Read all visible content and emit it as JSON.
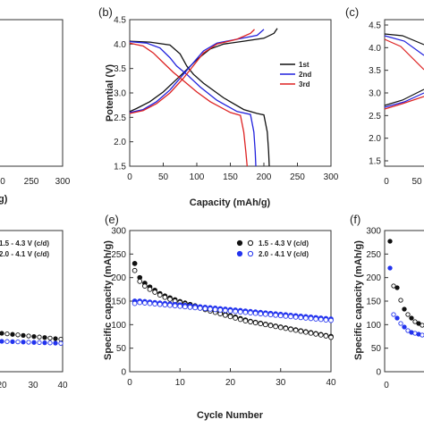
{
  "panels": {
    "a": {
      "tag": "",
      "xticks": [
        "0",
        "250",
        "300"
      ],
      "xlabel_fragment": "g)"
    },
    "b": {
      "tag": "(b)"
    },
    "c": {
      "tag": "(c)",
      "yticks": [
        "4.5",
        "4.0",
        "3.5",
        "3.0",
        "2.5",
        "2.0",
        "1.5"
      ],
      "xticks": [
        "0",
        "50"
      ]
    },
    "d": {
      "tag": "",
      "yticks": [],
      "xticks": [
        "20",
        "30",
        "40"
      ],
      "legend": [
        "1.5 - 4.3 V (c/d)",
        "2.0 - 4.1 V (c/d)"
      ]
    },
    "e": {
      "tag": "(e)"
    },
    "f": {
      "tag": "(f)",
      "ylabel": "Specific capacity (mAh/g)",
      "yticks": [
        "300",
        "250",
        "200",
        "150",
        "100",
        "50",
        "0"
      ],
      "xticks": [
        "0"
      ]
    }
  },
  "colors": {
    "first": "#111111",
    "second": "#2222dd",
    "third": "#dd2222",
    "open_black": "#111111",
    "filled_blue": "#2233ee"
  },
  "chart_data": [
    {
      "panel": "b",
      "type": "line",
      "title": "",
      "xlabel": "Capacity (mAh/g)",
      "ylabel": "Potential (V)",
      "xlim": [
        0,
        300
      ],
      "ylim": [
        1.5,
        4.5
      ],
      "xticks": [
        0,
        50,
        100,
        150,
        200,
        250,
        300
      ],
      "yticks": [
        1.5,
        2.0,
        2.5,
        3.0,
        3.5,
        4.0,
        4.5
      ],
      "legend_position": "right-center",
      "series": [
        {
          "name": "1st",
          "color": "#111111",
          "charge": [
            [
              0,
              2.62
            ],
            [
              10,
              2.68
            ],
            [
              30,
              2.82
            ],
            [
              50,
              3.02
            ],
            [
              70,
              3.28
            ],
            [
              85,
              3.48
            ],
            [
              100,
              3.68
            ],
            [
              120,
              3.9
            ],
            [
              140,
              4.0
            ],
            [
              170,
              4.06
            ],
            [
              200,
              4.12
            ],
            [
              215,
              4.22
            ],
            [
              220,
              4.32
            ]
          ],
          "discharge": [
            [
              0,
              4.06
            ],
            [
              30,
              4.04
            ],
            [
              60,
              3.98
            ],
            [
              75,
              3.8
            ],
            [
              85,
              3.55
            ],
            [
              95,
              3.38
            ],
            [
              110,
              3.2
            ],
            [
              140,
              2.9
            ],
            [
              170,
              2.66
            ],
            [
              190,
              2.58
            ],
            [
              200,
              2.55
            ],
            [
              205,
              2.2
            ],
            [
              207,
              1.8
            ],
            [
              208,
              1.5
            ]
          ]
        },
        {
          "name": "2nd",
          "color": "#2222dd",
          "charge": [
            [
              0,
              2.6
            ],
            [
              20,
              2.66
            ],
            [
              40,
              2.82
            ],
            [
              60,
              3.06
            ],
            [
              80,
              3.38
            ],
            [
              95,
              3.62
            ],
            [
              110,
              3.86
            ],
            [
              130,
              4.02
            ],
            [
              160,
              4.1
            ],
            [
              190,
              4.18
            ],
            [
              200,
              4.3
            ]
          ],
          "discharge": [
            [
              0,
              4.05
            ],
            [
              25,
              4.02
            ],
            [
              45,
              3.92
            ],
            [
              60,
              3.72
            ],
            [
              70,
              3.55
            ],
            [
              85,
              3.38
            ],
            [
              105,
              3.12
            ],
            [
              130,
              2.85
            ],
            [
              160,
              2.62
            ],
            [
              180,
              2.56
            ],
            [
              185,
              2.2
            ],
            [
              187,
              1.8
            ],
            [
              188,
              1.5
            ]
          ]
        },
        {
          "name": "3rd",
          "color": "#dd2222",
          "charge": [
            [
              0,
              2.58
            ],
            [
              20,
              2.64
            ],
            [
              40,
              2.78
            ],
            [
              60,
              3.0
            ],
            [
              80,
              3.3
            ],
            [
              95,
              3.56
            ],
            [
              110,
              3.82
            ],
            [
              130,
              4.0
            ],
            [
              160,
              4.1
            ],
            [
              180,
              4.22
            ],
            [
              186,
              4.3
            ]
          ],
          "discharge": [
            [
              0,
              4.02
            ],
            [
              20,
              3.96
            ],
            [
              35,
              3.82
            ],
            [
              50,
              3.62
            ],
            [
              65,
              3.42
            ],
            [
              80,
              3.25
            ],
            [
              100,
              3.02
            ],
            [
              120,
              2.82
            ],
            [
              150,
              2.6
            ],
            [
              165,
              2.54
            ],
            [
              170,
              2.2
            ],
            [
              173,
              1.8
            ],
            [
              175,
              1.5
            ]
          ]
        }
      ]
    },
    {
      "panel": "e",
      "type": "scatter",
      "title": "",
      "xlabel": "Cycle Number",
      "ylabel": "Specific capacity (mAh/g)",
      "xlim": [
        0,
        40
      ],
      "ylim": [
        0,
        300
      ],
      "xticks": [
        0,
        10,
        20,
        30,
        40
      ],
      "yticks": [
        0,
        50,
        100,
        150,
        200,
        250,
        300
      ],
      "legend_position": "top-right",
      "series": [
        {
          "name": "1.5 - 4.3 V (c/d)",
          "charge": [
            230,
            200,
            188,
            180,
            173,
            166,
            161,
            157,
            153,
            149,
            146,
            143,
            140,
            137,
            134,
            131,
            128,
            125,
            122,
            119,
            116,
            113,
            110,
            107,
            105,
            103,
            101,
            99,
            97,
            95,
            93,
            91,
            89,
            87,
            85,
            83,
            81,
            79,
            77,
            75
          ],
          "discharge": [
            215,
            192,
            182,
            175,
            169,
            163,
            158,
            154,
            150,
            147,
            144,
            141,
            138,
            135,
            132,
            129,
            126,
            123,
            120,
            117,
            114,
            111,
            108,
            106,
            104,
            102,
            100,
            98,
            96,
            94,
            92,
            90,
            88,
            86,
            84,
            82,
            80,
            78,
            76,
            73
          ]
        },
        {
          "name": "2.0 - 4.1 V (c/d)",
          "charge": [
            150,
            150,
            149,
            148,
            147,
            146,
            145,
            144,
            143,
            142,
            141,
            140,
            139,
            138,
            137,
            136,
            135,
            134,
            133,
            132,
            131,
            130,
            129,
            128,
            127,
            126,
            125,
            124,
            123,
            122,
            121,
            120,
            119,
            118,
            117,
            116,
            115,
            114,
            113,
            112
          ],
          "discharge": [
            145,
            147,
            146,
            145,
            144,
            143,
            142,
            141,
            140,
            139,
            138,
            137,
            136,
            135,
            134,
            133,
            132,
            131,
            130,
            129,
            128,
            127,
            126,
            125,
            124,
            123,
            122,
            121,
            120,
            119,
            118,
            117,
            116,
            115,
            114,
            113,
            112,
            111,
            110,
            109
          ]
        }
      ]
    }
  ]
}
